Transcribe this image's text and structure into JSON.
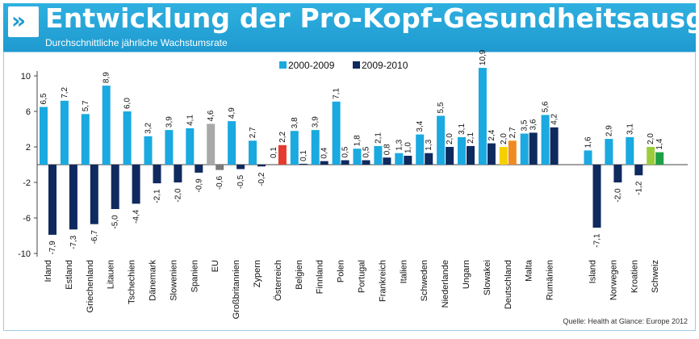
{
  "header": {
    "logo_glyph": "»",
    "title": "Entwicklung der Pro-Kopf-Gesundheitsausgaben",
    "subtitle": "Durchschnittliche jährliche Wachstumsrate"
  },
  "source": "Quelle: Health at Glance: Europe 2012",
  "colors": {
    "series_2000_2009": "#1aa9e0",
    "series_2009_2010": "#0f2a5e",
    "eu_2000_2009": "#a9a9a9",
    "eu_2009_2010": "#7b7b7b",
    "oesterreich": "#e53a2e",
    "deutschland_2000_2009": "#f5d000",
    "deutschland_2009_2010": "#f08a20",
    "schweiz_2000_2009": "#9ccc3c",
    "schweiz_2009_2010": "#1f9f46",
    "header_blue": "#1e9ad0"
  },
  "chart_data": {
    "type": "bar",
    "title": "Entwicklung der Pro-Kopf-Gesundheitsausgaben",
    "subtitle": "Durchschnittliche jährliche Wachstumsrate",
    "ylim": [
      -10,
      12
    ],
    "yticks": [
      "10",
      "6",
      "2",
      "-2",
      "-6",
      "-10"
    ],
    "grid": false,
    "legend_position": "top",
    "categories": [
      "Irland",
      "Estland",
      "Griechenland",
      "Litauen",
      "Tschechien",
      "Dänemark",
      "Slowenien",
      "Spanien",
      "EU",
      "Großbritannien",
      "Zypern",
      "Österreich",
      "Belgien",
      "Finnland",
      "Polen",
      "Portugal",
      "Frankreich",
      "Italien",
      "Schweden",
      "Niederlande",
      "Ungarn",
      "Slowakei",
      "Deutschland",
      "Malta",
      "Rumänien",
      "Island",
      "Norwegen",
      "Kroatien",
      "Schweiz"
    ],
    "series": [
      {
        "name": "2000-2009",
        "values": [
          6.5,
          7.2,
          5.7,
          8.9,
          6.0,
          3.2,
          3.9,
          4.1,
          4.6,
          4.9,
          2.7,
          null,
          3.8,
          3.9,
          7.1,
          1.8,
          2.1,
          1.3,
          3.4,
          5.5,
          3.1,
          10.9,
          2.0,
          3.5,
          5.6,
          1.6,
          2.9,
          3.1,
          2.0
        ],
        "labels": [
          "6,5",
          "7,2",
          "5,7",
          "8,9",
          "6,0",
          "3,2",
          "3,9",
          "4,1",
          "4,6",
          "4,9",
          "2,7",
          "",
          "3,8",
          "3,9",
          "7,1",
          "1,8",
          "2,1",
          "1,3",
          "3,4",
          "5,5",
          "3,1",
          "10,9",
          "2,0",
          "3,5",
          "5,6",
          "1,6",
          "2,9",
          "3,1",
          "2,0"
        ]
      },
      {
        "name": "2009-2010",
        "values": [
          -7.9,
          -7.3,
          -6.7,
          -5.0,
          -4.4,
          -2.1,
          -2.0,
          -0.9,
          -0.6,
          -0.5,
          -0.2,
          2.2,
          0.1,
          0.4,
          0.5,
          0.5,
          0.8,
          1.0,
          1.3,
          2.0,
          2.1,
          2.4,
          2.7,
          3.6,
          4.2,
          -7.1,
          -2.0,
          -1.2,
          1.4
        ],
        "labels": [
          "-7,9",
          "-7,3",
          "-6,7",
          "-5,0",
          "-4,4",
          "-2,1",
          "-2,0",
          "-0,9",
          "-0,6",
          "-0,5",
          "-0,2",
          "2,2",
          "0,1",
          "0,4",
          "0,5",
          "0,5",
          "0,8",
          "1,0",
          "1,3",
          "2,0",
          "2,1",
          "2,4",
          "2,7",
          "3,6",
          "4,2",
          "-7,1",
          "-2,0",
          "-1,2",
          "1,4"
        ]
      }
    ],
    "oesterreich_extra_label": "0,1"
  }
}
